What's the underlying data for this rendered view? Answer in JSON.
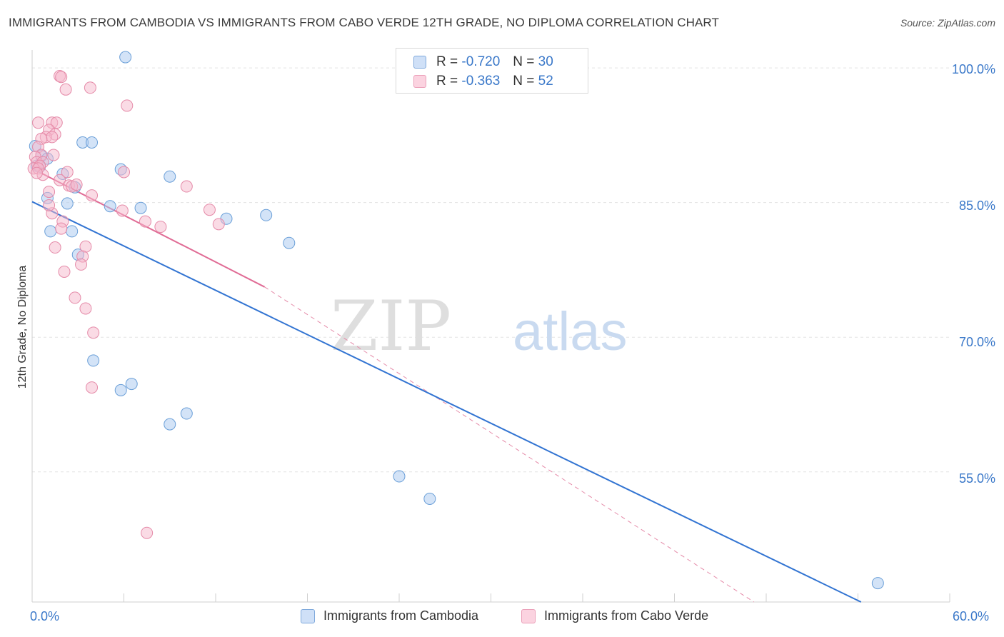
{
  "header": {
    "title": "IMMIGRANTS FROM CAMBODIA VS IMMIGRANTS FROM CABO VERDE 12TH GRADE, NO DIPLOMA CORRELATION CHART",
    "source": "Source: ZipAtlas.com"
  },
  "legend": {
    "rows": [
      {
        "r_label": "R =",
        "r_value": "-0.720",
        "n_label": "N =",
        "n_value": "30",
        "color": "#a8c8f0"
      },
      {
        "r_label": "R =",
        "r_value": "-0.363",
        "n_label": "N =",
        "n_value": "52",
        "color": "#f5b8cc"
      }
    ]
  },
  "bottom_legend": {
    "items": [
      {
        "label": "Immigrants from Cambodia",
        "color": "#a8c8f0"
      },
      {
        "label": "Immigrants from Cabo Verde",
        "color": "#f5b8cc"
      }
    ]
  },
  "watermark": {
    "zip": "ZIP",
    "atlas": "atlas"
  },
  "chart_data": {
    "type": "scatter",
    "title": "IMMIGRANTS FROM CAMBODIA VS IMMIGRANTS FROM CABO VERDE 12TH GRADE, NO DIPLOMA CORRELATION CHART",
    "xlabel": "",
    "ylabel": "12th Grade, No Diploma",
    "xlim": [
      0,
      60
    ],
    "ylim": [
      40.5,
      102
    ],
    "x_tick_labels": [
      {
        "value": 0,
        "label": "0.0%"
      },
      {
        "value": 60,
        "label": "60.0%"
      }
    ],
    "y_tick_labels": [
      {
        "value": 100,
        "label": "100.0%"
      },
      {
        "value": 85,
        "label": "85.0%"
      },
      {
        "value": 70,
        "label": "70.0%"
      },
      {
        "value": 55,
        "label": "55.0%"
      }
    ],
    "y_gridlines": [
      100,
      85,
      70,
      55
    ],
    "x_minor_ticks": [
      0,
      6,
      12,
      18,
      24,
      30,
      36,
      42,
      48,
      54,
      60
    ],
    "series": [
      {
        "name": "Immigrants from Cambodia",
        "color": "#a8c8f0",
        "stroke": "#6a9fd8",
        "points": [
          [
            6.1,
            101.2
          ],
          [
            3.3,
            91.7
          ],
          [
            3.9,
            91.7
          ],
          [
            0.2,
            91.3
          ],
          [
            0.6,
            90.2
          ],
          [
            0.3,
            89.1
          ],
          [
            1.0,
            89.9
          ],
          [
            0.5,
            89.0
          ],
          [
            5.8,
            88.7
          ],
          [
            9.0,
            87.9
          ],
          [
            2.8,
            86.7
          ],
          [
            1.0,
            85.5
          ],
          [
            2.3,
            84.9
          ],
          [
            5.1,
            84.6
          ],
          [
            7.1,
            84.4
          ],
          [
            12.7,
            83.2
          ],
          [
            15.3,
            83.6
          ],
          [
            1.2,
            81.8
          ],
          [
            2.6,
            81.8
          ],
          [
            16.8,
            80.5
          ],
          [
            3.0,
            79.2
          ],
          [
            4.0,
            67.4
          ],
          [
            6.5,
            64.8
          ],
          [
            5.8,
            64.1
          ],
          [
            10.1,
            61.5
          ],
          [
            9.0,
            60.3
          ],
          [
            24.0,
            54.5
          ],
          [
            26.0,
            52.0
          ],
          [
            55.3,
            42.6
          ],
          [
            2.0,
            88.2
          ]
        ],
        "trend": {
          "x": [
            0,
            54.2
          ],
          "y": [
            85.1,
            40.5
          ]
        }
      },
      {
        "name": "Immigrants from Cabo Verde",
        "color": "#f5b8cc",
        "stroke": "#e58aa8",
        "points": [
          [
            1.8,
            99.1
          ],
          [
            1.9,
            99.0
          ],
          [
            3.8,
            97.8
          ],
          [
            2.2,
            97.6
          ],
          [
            6.2,
            95.8
          ],
          [
            0.4,
            93.9
          ],
          [
            1.3,
            93.9
          ],
          [
            1.6,
            93.9
          ],
          [
            1.1,
            93.1
          ],
          [
            1.5,
            92.6
          ],
          [
            0.9,
            92.3
          ],
          [
            1.3,
            92.3
          ],
          [
            0.6,
            92.1
          ],
          [
            0.4,
            91.2
          ],
          [
            0.6,
            90.3
          ],
          [
            1.4,
            90.3
          ],
          [
            0.2,
            90.1
          ],
          [
            0.3,
            89.5
          ],
          [
            0.7,
            89.5
          ],
          [
            0.5,
            89.1
          ],
          [
            0.1,
            88.8
          ],
          [
            0.4,
            88.8
          ],
          [
            0.7,
            88.1
          ],
          [
            2.3,
            88.4
          ],
          [
            6.0,
            88.4
          ],
          [
            1.8,
            87.5
          ],
          [
            2.4,
            86.9
          ],
          [
            2.6,
            86.8
          ],
          [
            10.1,
            86.8
          ],
          [
            1.1,
            86.2
          ],
          [
            3.9,
            85.8
          ],
          [
            5.9,
            84.1
          ],
          [
            11.6,
            84.2
          ],
          [
            1.3,
            83.8
          ],
          [
            2.0,
            82.9
          ],
          [
            7.4,
            82.9
          ],
          [
            12.2,
            82.6
          ],
          [
            8.4,
            82.3
          ],
          [
            1.9,
            82.1
          ],
          [
            3.5,
            80.1
          ],
          [
            1.5,
            80.0
          ],
          [
            3.3,
            79.0
          ],
          [
            3.2,
            78.1
          ],
          [
            2.1,
            77.3
          ],
          [
            2.8,
            74.4
          ],
          [
            3.5,
            73.2
          ],
          [
            4.0,
            70.5
          ],
          [
            3.9,
            64.4
          ],
          [
            7.5,
            48.2
          ],
          [
            0.3,
            88.3
          ],
          [
            1.1,
            84.7
          ],
          [
            2.9,
            87.0
          ]
        ],
        "trend": {
          "x": [
            0,
            15.2
          ],
          "y": [
            88.8,
            75.6
          ]
        },
        "trend_dashed": {
          "x": [
            15.2,
            47.2
          ],
          "y": [
            75.6,
            40.5
          ]
        }
      }
    ]
  }
}
